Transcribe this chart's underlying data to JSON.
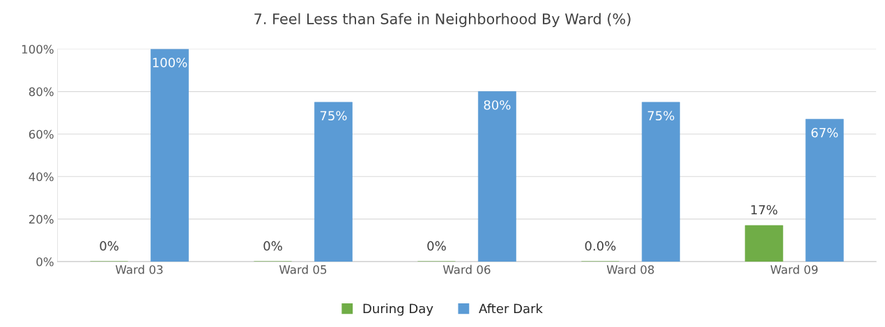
{
  "chart_data": {
    "type": "bar",
    "title": "7. Feel Less than Safe in Neighborhood By Ward (%)",
    "categories": [
      "Ward 03",
      "Ward 05",
      "Ward 06",
      "Ward 08",
      "Ward 09"
    ],
    "series": [
      {
        "name": "During Day",
        "color": "#70ad47",
        "values": [
          0,
          0,
          0,
          0,
          17
        ],
        "value_labels": [
          "0%",
          "0%",
          "0%",
          "0.0%",
          "17%"
        ]
      },
      {
        "name": "After Dark",
        "color": "#5b9bd5",
        "values": [
          100,
          75,
          80,
          75,
          67
        ],
        "value_labels": [
          "100%",
          "75%",
          "80%",
          "75%",
          "67%"
        ]
      }
    ],
    "ylim": [
      0,
      100
    ],
    "yticks": [
      {
        "value": 0,
        "label": "0%"
      },
      {
        "value": 20,
        "label": "20%"
      },
      {
        "value": 40,
        "label": "40%"
      },
      {
        "value": 60,
        "label": "60%"
      },
      {
        "value": 80,
        "label": "80%"
      },
      {
        "value": 100,
        "label": "100%"
      }
    ],
    "grid": "y",
    "legend": "bottom"
  }
}
